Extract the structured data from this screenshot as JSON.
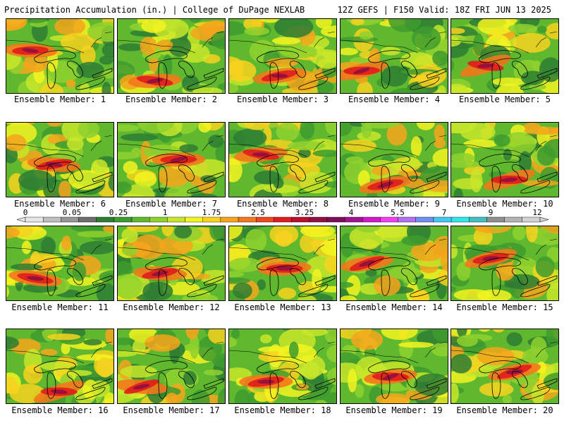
{
  "header": {
    "left": "Precipitation Accumulation (in.) | College of DuPage NEXLAB",
    "right": "12Z GEFS | F150 Valid: 18Z FRI JUN 13 2025"
  },
  "member_prefix": "Ensemble Member: ",
  "members": [
    1,
    2,
    3,
    4,
    5,
    6,
    7,
    8,
    9,
    10,
    11,
    12,
    13,
    14,
    15,
    16,
    17,
    18,
    19,
    20
  ],
  "colorbar": {
    "tick_labels": [
      "0",
      "0.05",
      "0.25",
      "1",
      "1.75",
      "2.5",
      "3.25",
      "4",
      "5.5",
      "7",
      "9",
      "12"
    ],
    "colors": [
      "#e6e6e6",
      "#bfbfbf",
      "#969696",
      "#6e6e6e",
      "#2e7d32",
      "#3e9b2e",
      "#5fb82e",
      "#8fd12e",
      "#c8e62a",
      "#f3f520",
      "#f7d21e",
      "#f6a41c",
      "#f2781c",
      "#ec4a1e",
      "#e01c1c",
      "#b8102e",
      "#901040",
      "#7a0f5c",
      "#a01490",
      "#d21ac8",
      "#f040f0",
      "#b070f0",
      "#7090f0",
      "#40c8f0",
      "#30e6e6",
      "#40c0c0",
      "#909090",
      "#b4b4b4",
      "#d2d2d2"
    ]
  },
  "chart_data": {
    "type": "heatmap",
    "title": "Precipitation Accumulation (in.)",
    "panels": [
      "Ensemble Member: 1",
      "Ensemble Member: 2",
      "Ensemble Member: 3",
      "Ensemble Member: 4",
      "Ensemble Member: 5",
      "Ensemble Member: 6",
      "Ensemble Member: 7",
      "Ensemble Member: 8",
      "Ensemble Member: 9",
      "Ensemble Member: 10",
      "Ensemble Member: 11",
      "Ensemble Member: 12",
      "Ensemble Member: 13",
      "Ensemble Member: 14",
      "Ensemble Member: 15",
      "Ensemble Member: 16",
      "Ensemble Member: 17",
      "Ensemble Member: 18",
      "Ensemble Member: 19",
      "Ensemble Member: 20"
    ],
    "scale_ticks": [
      0,
      0.05,
      0.25,
      1,
      1.75,
      2.5,
      3.25,
      4,
      5.5,
      7,
      9,
      12
    ]
  }
}
